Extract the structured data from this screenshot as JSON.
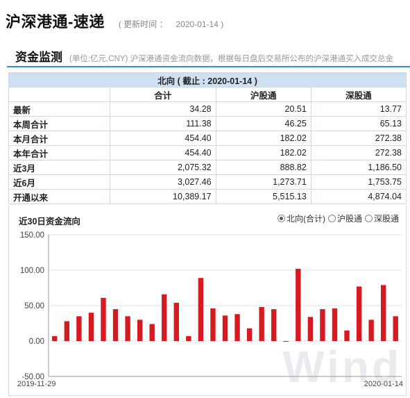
{
  "header": {
    "title": "沪深港通-速递",
    "update_label": "( 更新时间 ：",
    "update_date": "2020-01-14 )"
  },
  "section": {
    "title": "资金监测",
    "desc": "(单位:亿元,CNY)  沪深港通资金流向数据，根据每日盘后交易所公布的沪深港通买入成交总金"
  },
  "table": {
    "caption": "北向 ( 截止 : 2020-01-14 )",
    "columns": [
      "合计",
      "沪股通",
      "深股通"
    ],
    "rows": [
      {
        "label": "最新",
        "values": [
          "34.28",
          "20.51",
          "13.77"
        ]
      },
      {
        "label": "本周合计",
        "values": [
          "111.38",
          "46.25",
          "65.13"
        ]
      },
      {
        "label": "本月合计",
        "values": [
          "454.40",
          "182.02",
          "272.38"
        ]
      },
      {
        "label": "本年合计",
        "values": [
          "454.40",
          "182.02",
          "272.38"
        ]
      },
      {
        "label": "近3月",
        "values": [
          "2,075.32",
          "888.82",
          "1,186.50"
        ]
      },
      {
        "label": "近6月",
        "values": [
          "3,027.46",
          "1,273.71",
          "1,753.75"
        ]
      },
      {
        "label": "开通以来",
        "values": [
          "10,389.17",
          "5,515.13",
          "4,874.04"
        ]
      }
    ]
  },
  "chart_data": {
    "type": "bar",
    "title": "近30日资金流向",
    "legend": [
      {
        "label": "北向(合计)",
        "selected": true
      },
      {
        "label": "沪股通",
        "selected": false
      },
      {
        "label": "深股通",
        "selected": false
      }
    ],
    "legend_position": "top-right",
    "ylim": [
      -50,
      150
    ],
    "yticks": [
      "150.00",
      "100.00",
      "50.00",
      "0.00",
      "-50.00"
    ],
    "ytick_values": [
      150,
      100,
      50,
      0,
      -50
    ],
    "x_start_label": "2019-11-29",
    "x_end_label": "2020-01-14",
    "values": [
      7,
      28,
      35,
      40,
      61,
      45,
      35,
      30,
      24,
      66,
      54,
      7,
      89,
      46,
      36,
      38,
      18,
      48,
      45,
      -1,
      102,
      34,
      45,
      46,
      15,
      77,
      30,
      79,
      35
    ],
    "bar_color": "#d71920",
    "grid": true
  },
  "watermark": "Wind"
}
